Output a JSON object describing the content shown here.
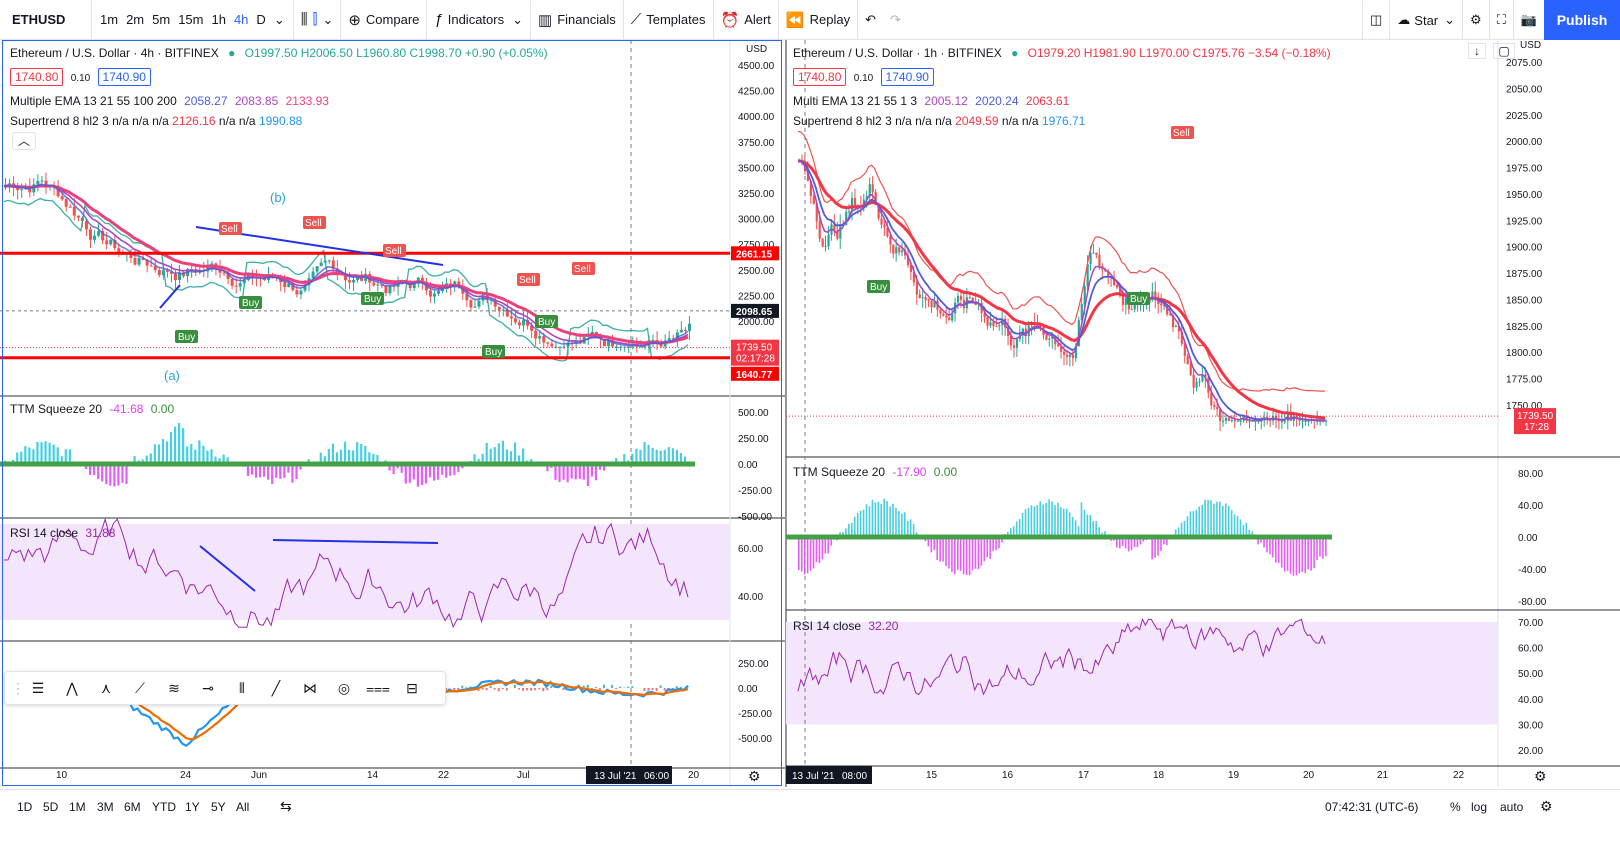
{
  "topbar": {
    "symbol": "ETHUSD",
    "intervals": [
      "1m",
      "2m",
      "5m",
      "15m",
      "1h",
      "4h",
      "D"
    ],
    "active_interval": "4h",
    "compare": "Compare",
    "indicators": "Indicators",
    "financials": "Financials",
    "templates": "Templates",
    "alert": "Alert",
    "replay": "Replay",
    "star": "Star",
    "publish": "Publish"
  },
  "left": {
    "title": "Ethereum / U.S. Dollar · 4h · BITFINEX",
    "ohlc": "O1997.50 H2006.50 L1960.80 C1998.70 +0.90 (+0.05%)",
    "bid": "1740.80",
    "spread": "0.10",
    "ask": "1740.90",
    "ema_label": "Multiple EMA 13 21 55 100 200",
    "ema_values": [
      "2058.27",
      "2083.85",
      "2133.93"
    ],
    "st_label": "Supertrend 8 hl2 3",
    "st_values": "n/a n/a n/a",
    "st_v1": "2126.16",
    "st_v2": "n/a n/a",
    "st_v3": "1990.88",
    "currency": "USD",
    "price_ticks": [
      "4500.00",
      "4250.00",
      "4000.00",
      "3750.00",
      "3500.00",
      "3250.00",
      "3000.00",
      "2750.00",
      "2500.00",
      "2250.00",
      "2000.00"
    ],
    "price_labels": {
      "upper": "2661.15",
      "mid": "2098.65",
      "last": "1739.50",
      "countdown": "02:17:28",
      "lower": "1640.77"
    },
    "wave_b": "(b)",
    "wave_a": "(a)",
    "ttm_label": "TTM Squeeze 20",
    "ttm_v1": "-41.68",
    "ttm_v2": "0.00",
    "ttm_ticks": [
      "500.00",
      "250.00",
      "0.00",
      "-250.00",
      "-500.00"
    ],
    "rsi_label": "RSI 14 close",
    "rsi_value": "31.88",
    "rsi_ticks": [
      "60.00",
      "40.00"
    ],
    "osc_ticks": [
      "250.00",
      "0.00",
      "-250.00",
      "-500.00"
    ],
    "time_ticks": [
      "10",
      "24",
      "Jun",
      "14",
      "22",
      "Jul",
      "20"
    ],
    "crosshair_date": "13 Jul '21",
    "crosshair_time": "06:00"
  },
  "right": {
    "title": "Ethereum / U.S. Dollar · 1h · BITFINEX",
    "ohlc": "O1979.20 H1981.90 L1970.00 C1975.76 −3.54 (−0.18%)",
    "bid": "1740.80",
    "spread": "0.10",
    "ask": "1740.90",
    "ema_label": "Multi EMA 13 21 55 1 3",
    "ema_values": [
      "2005.12",
      "2020.24",
      "2063.61"
    ],
    "st_label": "Supertrend 8 hl2 3",
    "st_values": "n/a n/a n/a",
    "st_v1": "2049.59",
    "st_v2": "n/a n/a",
    "st_v3": "1976.71",
    "currency": "USD",
    "price_ticks": [
      "2075.00",
      "2050.00",
      "2025.00",
      "2000.00",
      "1975.00",
      "1950.00",
      "1925.00",
      "1900.00",
      "1875.00",
      "1850.00",
      "1825.00",
      "1800.00",
      "1775.00",
      "1750.00"
    ],
    "price_labels": {
      "last": "1739.50",
      "countdown": "17:28"
    },
    "ttm_label": "TTM Squeeze 20",
    "ttm_v1": "-17.90",
    "ttm_v2": "0.00",
    "ttm_ticks": [
      "80.00",
      "40.00",
      "0.00",
      "-40.00",
      "-80.00"
    ],
    "rsi_label": "RSI 14 close",
    "rsi_value": "32.20",
    "rsi_ticks": [
      "70.00",
      "60.00",
      "50.00",
      "40.00",
      "30.00",
      "20.00"
    ],
    "time_ticks": [
      "15",
      "16",
      "17",
      "18",
      "19",
      "20",
      "21",
      "22"
    ],
    "crosshair_date": "13 Jul '21",
    "crosshair_time": "08:00"
  },
  "signals": {
    "buy": "Buy",
    "sell": "Sell"
  },
  "bottom": {
    "ranges": [
      "1D",
      "5D",
      "1M",
      "3M",
      "6M",
      "YTD",
      "1Y",
      "5Y",
      "All"
    ],
    "clock": "07:42:31 (UTC-6)",
    "percent": "%",
    "log": "log",
    "auto": "auto"
  },
  "colors": {
    "accent": "#2962ff",
    "up": "#26a69a",
    "down": "#ef5350",
    "ema_fast": "#4c5fd5",
    "ema_mid": "#ab47bc",
    "ema_slow": "#ec407a",
    "hline": "#ff0000",
    "rsi_line": "#9c27b0",
    "rsi_band": "#f3e5fc"
  }
}
